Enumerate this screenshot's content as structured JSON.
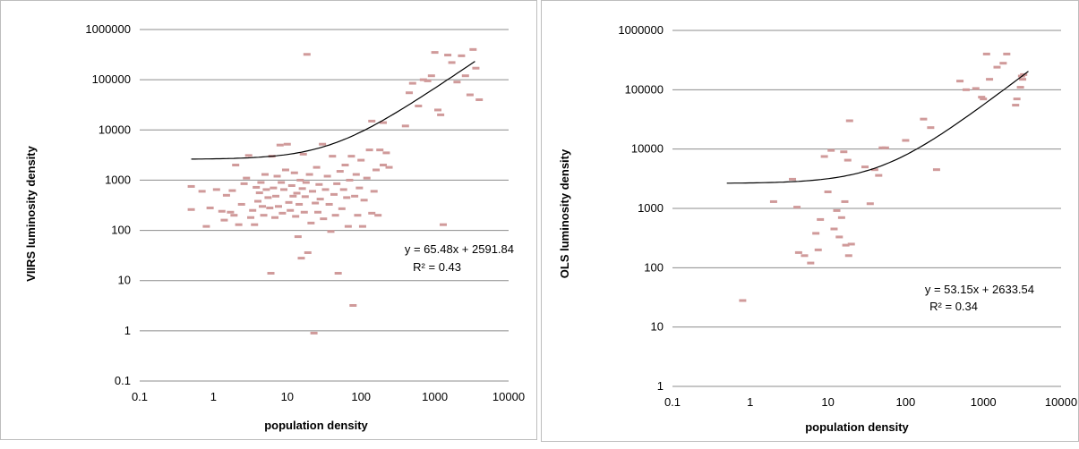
{
  "chart_data": [
    {
      "type": "scatter",
      "xlabel": "population density",
      "ylabel": "VIIRS luminosity density",
      "x_scale": "log",
      "y_scale": "log",
      "xlim": [
        0.1,
        10000
      ],
      "ylim": [
        0.1,
        1000000
      ],
      "x_ticks": [
        "0.1",
        "1",
        "10",
        "100",
        "1000",
        "10000"
      ],
      "y_ticks": [
        "0.1",
        "1",
        "10",
        "100",
        "1000",
        "10000",
        "100000",
        "1000000"
      ],
      "grid": "horizontal",
      "marker_color": "#d09a9a",
      "trendline_color": "#000000",
      "trendline": {
        "slope": 65.48,
        "intercept": 2591.84,
        "x_range": [
          0.5,
          3500
        ]
      },
      "equation": "y = 65.48x + 2591.84",
      "r_squared": "R² = 0.43",
      "points": [
        [
          0.5,
          750
        ],
        [
          0.5,
          260
        ],
        [
          0.7,
          600
        ],
        [
          0.8,
          120
        ],
        [
          0.9,
          280
        ],
        [
          1.1,
          650
        ],
        [
          1.3,
          240
        ],
        [
          1.4,
          160
        ],
        [
          1.5,
          500
        ],
        [
          1.7,
          230
        ],
        [
          1.8,
          620
        ],
        [
          1.9,
          200
        ],
        [
          2.0,
          2000
        ],
        [
          2.2,
          130
        ],
        [
          2.4,
          330
        ],
        [
          2.6,
          850
        ],
        [
          2.8,
          1100
        ],
        [
          3.0,
          3100
        ],
        [
          3.2,
          180
        ],
        [
          3.4,
          250
        ],
        [
          3.6,
          130
        ],
        [
          3.8,
          720
        ],
        [
          4.0,
          380
        ],
        [
          4.2,
          560
        ],
        [
          4.4,
          900
        ],
        [
          4.6,
          300
        ],
        [
          4.8,
          200
        ],
        [
          5.0,
          1300
        ],
        [
          5.2,
          650
        ],
        [
          5.5,
          450
        ],
        [
          5.8,
          280
        ],
        [
          6.0,
          14
        ],
        [
          6.2,
          3000
        ],
        [
          6.5,
          700
        ],
        [
          6.8,
          180
        ],
        [
          7.0,
          480
        ],
        [
          7.3,
          1200
        ],
        [
          7.6,
          300
        ],
        [
          8.0,
          5000
        ],
        [
          8.3,
          900
        ],
        [
          8.6,
          220
        ],
        [
          9.0,
          650
        ],
        [
          9.5,
          1600
        ],
        [
          10,
          5200
        ],
        [
          10.5,
          360
        ],
        [
          11,
          250
        ],
        [
          11.5,
          780
        ],
        [
          12,
          480
        ],
        [
          12.5,
          1400
        ],
        [
          13,
          190
        ],
        [
          13.5,
          550
        ],
        [
          14,
          75
        ],
        [
          14.5,
          330
        ],
        [
          15,
          1000
        ],
        [
          15.5,
          28
        ],
        [
          16,
          680
        ],
        [
          16.5,
          3300
        ],
        [
          17,
          230
        ],
        [
          17.5,
          470
        ],
        [
          18,
          900
        ],
        [
          18.5,
          320000
        ],
        [
          19,
          36
        ],
        [
          20,
          1300
        ],
        [
          21,
          140
        ],
        [
          22,
          600
        ],
        [
          23,
          0.9
        ],
        [
          24,
          350
        ],
        [
          25,
          1800
        ],
        [
          26,
          230
        ],
        [
          27,
          820
        ],
        [
          28,
          420
        ],
        [
          30,
          5200
        ],
        [
          31,
          170
        ],
        [
          33,
          650
        ],
        [
          35,
          1200
        ],
        [
          37,
          330
        ],
        [
          39,
          95
        ],
        [
          41,
          3000
        ],
        [
          43,
          520
        ],
        [
          45,
          200
        ],
        [
          47,
          850
        ],
        [
          49,
          14
        ],
        [
          52,
          1500
        ],
        [
          55,
          270
        ],
        [
          58,
          650
        ],
        [
          61,
          2000
        ],
        [
          64,
          450
        ],
        [
          67,
          120
        ],
        [
          70,
          1000
        ],
        [
          74,
          3000
        ],
        [
          78,
          3.2
        ],
        [
          82,
          480
        ],
        [
          86,
          1300
        ],
        [
          90,
          200
        ],
        [
          95,
          700
        ],
        [
          100,
          2500
        ],
        [
          105,
          120
        ],
        [
          110,
          400
        ],
        [
          120,
          1100
        ],
        [
          130,
          4000
        ],
        [
          140,
          220
        ],
        [
          150,
          600
        ],
        [
          160,
          1600
        ],
        [
          170,
          200
        ],
        [
          180,
          4000
        ],
        [
          200,
          2000
        ],
        [
          220,
          3500
        ],
        [
          240,
          1800
        ],
        [
          400,
          12000
        ],
        [
          450,
          55000
        ],
        [
          500,
          85000
        ],
        [
          600,
          30000
        ],
        [
          700,
          100000
        ],
        [
          800,
          95000
        ],
        [
          900,
          120000
        ],
        [
          1000,
          350000
        ],
        [
          1100,
          25000
        ],
        [
          1200,
          20000
        ],
        [
          1300,
          130
        ],
        [
          1500,
          310000
        ],
        [
          1700,
          220000
        ],
        [
          2000,
          90000
        ],
        [
          2300,
          300000
        ],
        [
          2600,
          120000
        ],
        [
          3000,
          50000
        ],
        [
          3300,
          400000
        ],
        [
          3600,
          170000
        ],
        [
          4000,
          40000
        ],
        [
          140,
          15000
        ],
        [
          200,
          14000
        ]
      ]
    },
    {
      "type": "scatter",
      "xlabel": "population density",
      "ylabel": "OLS luminosity density",
      "x_scale": "log",
      "y_scale": "log",
      "xlim": [
        0.1,
        10000
      ],
      "ylim": [
        1,
        1000000
      ],
      "x_ticks": [
        "0.1",
        "1",
        "10",
        "100",
        "1000",
        "10000"
      ],
      "y_ticks": [
        "1",
        "10",
        "100",
        "1000",
        "10000",
        "100000",
        "1000000"
      ],
      "grid": "horizontal",
      "marker_color": "#d09a9a",
      "trendline_color": "#000000",
      "trendline": {
        "slope": 53.15,
        "intercept": 2633.54,
        "x_range": [
          0.5,
          3800
        ]
      },
      "equation": "y = 53.15x + 2633.54",
      "r_squared": "R² = 0.34",
      "points": [
        [
          0.8,
          28
        ],
        [
          2.0,
          1300
        ],
        [
          3.5,
          3100
        ],
        [
          4.0,
          1050
        ],
        [
          4.2,
          180
        ],
        [
          5.0,
          160
        ],
        [
          6.0,
          120
        ],
        [
          7.0,
          380
        ],
        [
          7.5,
          200
        ],
        [
          8.0,
          650
        ],
        [
          9.0,
          7500
        ],
        [
          10,
          1900
        ],
        [
          11,
          9500
        ],
        [
          12,
          450
        ],
        [
          13,
          920
        ],
        [
          14,
          330
        ],
        [
          15,
          700
        ],
        [
          16,
          9000
        ],
        [
          16.5,
          1300
        ],
        [
          17,
          240
        ],
        [
          18,
          6500
        ],
        [
          18.5,
          160
        ],
        [
          19,
          30000
        ],
        [
          20,
          250
        ],
        [
          30,
          5000
        ],
        [
          35,
          1200
        ],
        [
          40,
          4500
        ],
        [
          45,
          3600
        ],
        [
          50,
          10500
        ],
        [
          55,
          10500
        ],
        [
          100,
          14000
        ],
        [
          170,
          32000
        ],
        [
          210,
          23000
        ],
        [
          250,
          4500
        ],
        [
          500,
          140000
        ],
        [
          600,
          100000
        ],
        [
          800,
          105000
        ],
        [
          950,
          75000
        ],
        [
          1000,
          70000
        ],
        [
          1100,
          400000
        ],
        [
          1200,
          150000
        ],
        [
          1500,
          240000
        ],
        [
          1800,
          280000
        ],
        [
          2000,
          400000
        ],
        [
          2600,
          55000
        ],
        [
          2700,
          70000
        ],
        [
          3000,
          110000
        ],
        [
          3100,
          170000
        ],
        [
          3200,
          150000
        ],
        [
          3300,
          180000
        ]
      ]
    }
  ]
}
